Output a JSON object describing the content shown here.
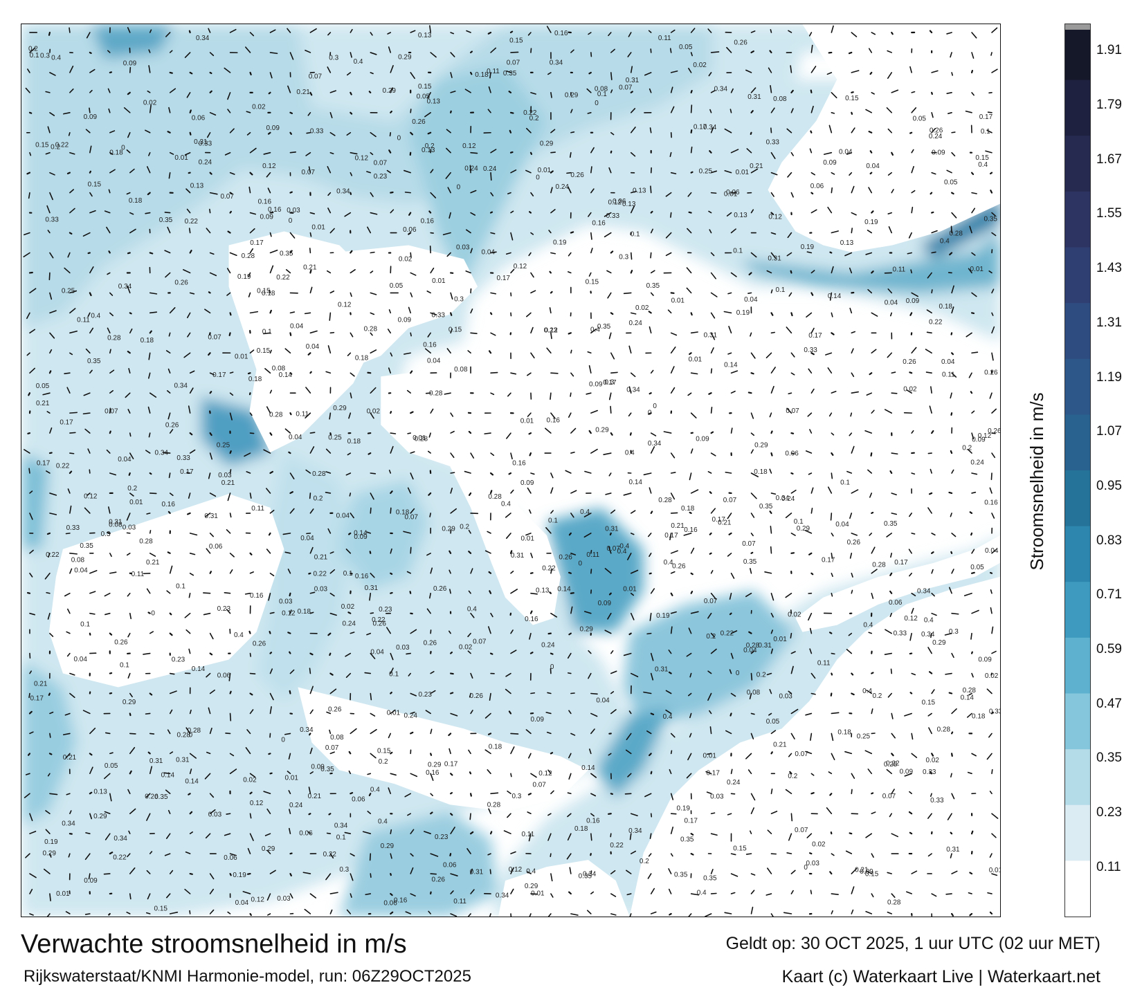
{
  "title": "Verwachte stroomsnelheid in m/s",
  "subtitle": "Rijkswaterstaat/KNMI Harmonie-model, run: 06Z29OCT2025",
  "valid_time": "Geldt op: 30 OCT 2025, 1 uur UTC (02 uur MET)",
  "credit": "Kaart (c) Waterkaart Live | Waterkaart.net",
  "colorbar": {
    "label": "Stroomsnelheid in m/s",
    "ticks": [
      "1.91",
      "1.79",
      "1.67",
      "1.55",
      "1.43",
      "1.31",
      "1.19",
      "1.07",
      "0.95",
      "0.83",
      "0.71",
      "0.59",
      "0.47",
      "0.35",
      "0.23",
      "0.11"
    ],
    "colors": [
      "#ffffff",
      "#dcecf3",
      "#b4dbe8",
      "#86c6dc",
      "#5eb1cf",
      "#3e9bbf",
      "#2c86ad",
      "#26739a",
      "#2a628f",
      "#2d5689",
      "#2f4c80",
      "#303f72",
      "#2e3462",
      "#272a50",
      "#1e2140",
      "#151829"
    ],
    "min": 0,
    "max": 1.97
  },
  "land_color": "#ffffff",
  "point_labels": [
    "0.05",
    "0.07",
    "0.09",
    "0.1",
    "0.04",
    "0.13",
    "0.07",
    "0.11",
    "0.14",
    "0.06",
    "0.08",
    "0.18",
    "0.16",
    "0.19",
    "0.2",
    "0.21",
    "0.24",
    "0.17",
    "0.12",
    "0.15",
    "0.22",
    "0.3",
    "0.23",
    "0.28",
    "0.34",
    "0.33",
    "0.26",
    "0.29",
    "0.35",
    "0.4",
    "0.03",
    "0.02",
    "0.01",
    "0",
    "0.31",
    "0.25"
  ]
}
